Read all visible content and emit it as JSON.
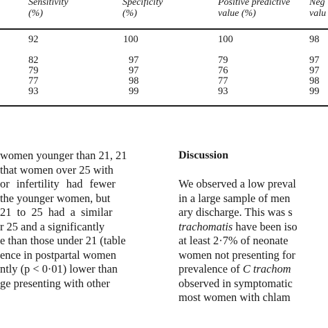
{
  "table": {
    "headers": [
      {
        "line1": "Sensitivity",
        "line2": "(%)"
      },
      {
        "line1": "Specificity",
        "line2": "(%)"
      },
      {
        "line1": "Positive predictive",
        "line2": "value (%)"
      },
      {
        "line1": "Neg",
        "line2": "valu"
      }
    ],
    "rows": [
      [
        "92",
        "100",
        "100",
        "98"
      ],
      [
        "82",
        "97",
        "79",
        "97"
      ],
      [
        "79",
        "97",
        "76",
        "97"
      ],
      [
        "77",
        "98",
        "77",
        "98"
      ],
      [
        "93",
        "99",
        "93",
        "99"
      ]
    ]
  },
  "left_column": {
    "lines": [
      "women younger than 21, 21",
      "that women over 25 with",
      "or infertility had fewer",
      "the younger women, but",
      "21 to 25 had a similar",
      "r 25 and a significantly",
      "e than those under 21 (table",
      "ence in postpartal women",
      "ntly (p < 0·01) lower than",
      "ge presenting with other"
    ]
  },
  "right_column": {
    "heading": "Discussion",
    "line1": "We observed a low preval",
    "line2": "in a large sample of men",
    "line3": "ary discharge. This was s",
    "line4_italic": "trachomatis",
    "line4_rest": " have been iso",
    "line5": "at least 2·7% of neonate",
    "line6": "women not presenting for",
    "line7_pre": "prevalence of ",
    "line7_italic": "C trachom",
    "line8": "observed in symptomatic",
    "line9": "most women with chlam"
  }
}
